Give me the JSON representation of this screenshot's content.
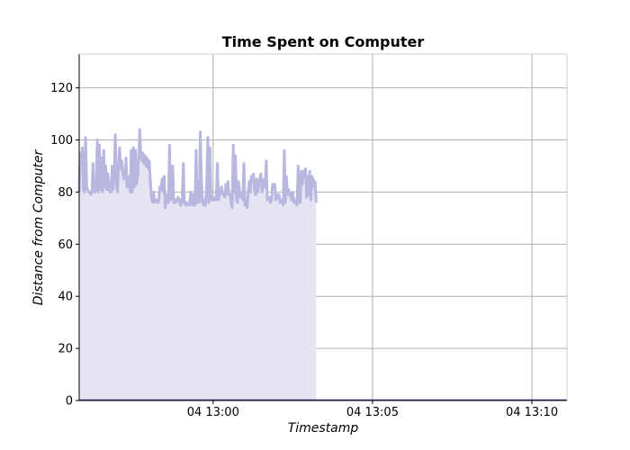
{
  "chart_data": {
    "type": "area",
    "title": "Time Spent on Computer",
    "xlabel": "Timestamp",
    "ylabel": "Distance from Computer",
    "ylim": [
      0,
      133
    ],
    "xlim": [
      "04 12:55:48",
      "04 13:11:06"
    ],
    "yticks": [
      0,
      20,
      40,
      60,
      80,
      100,
      120
    ],
    "xticks": [
      {
        "t": "04 13:00:00",
        "label": "04 13:00"
      },
      {
        "t": "04 13:05:00",
        "label": "04 13:05"
      },
      {
        "t": "04 13:10:00",
        "label": "04 13:10"
      }
    ],
    "grid": true,
    "colors": {
      "fill": "#e6e4f3",
      "line": "#b7b7df",
      "grid": "#b0b0b0",
      "baseline": "#3b3b9a"
    },
    "series": [
      {
        "values": [
          [
            "04 12:55:48",
            80
          ],
          [
            "04 12:55:50",
            95
          ],
          [
            "04 12:55:52",
            91
          ],
          [
            "04 12:55:54",
            97
          ],
          [
            "04 12:55:56",
            81
          ],
          [
            "04 12:55:58",
            80
          ],
          [
            "04 12:56:00",
            101
          ],
          [
            "04 12:56:02",
            82
          ],
          [
            "04 12:56:04",
            81
          ],
          [
            "04 12:56:06",
            80
          ],
          [
            "04 12:56:08",
            80
          ],
          [
            "04 12:56:10",
            79
          ],
          [
            "04 12:56:12",
            80
          ],
          [
            "04 12:56:14",
            91
          ],
          [
            "04 12:56:16",
            80
          ],
          [
            "04 12:56:18",
            80
          ],
          [
            "04 12:56:20",
            81
          ],
          [
            "04 12:56:22",
            100
          ],
          [
            "04 12:56:24",
            80
          ],
          [
            "04 12:56:26",
            98
          ],
          [
            "04 12:56:28",
            81
          ],
          [
            "04 12:56:30",
            93
          ],
          [
            "04 12:56:32",
            80
          ],
          [
            "04 12:56:34",
            96
          ],
          [
            "04 12:56:36",
            82
          ],
          [
            "04 12:56:38",
            90
          ],
          [
            "04 12:56:40",
            81
          ],
          [
            "04 12:56:42",
            87
          ],
          [
            "04 12:56:44",
            82
          ],
          [
            "04 12:56:46",
            80
          ],
          [
            "04 12:56:48",
            80
          ],
          [
            "04 12:56:50",
            90
          ],
          [
            "04 12:56:52",
            81
          ],
          [
            "04 12:56:54",
            88
          ],
          [
            "04 12:56:56",
            102
          ],
          [
            "04 12:56:58",
            84
          ],
          [
            "04 12:57:00",
            80
          ],
          [
            "04 12:57:02",
            90
          ],
          [
            "04 12:57:04",
            97
          ],
          [
            "04 12:57:06",
            89
          ],
          [
            "04 12:57:08",
            92
          ],
          [
            "04 12:57:10",
            88
          ],
          [
            "04 12:57:12",
            85
          ],
          [
            "04 12:57:14",
            85
          ],
          [
            "04 12:57:16",
            93
          ],
          [
            "04 12:57:18",
            82
          ],
          [
            "04 12:57:20",
            82
          ],
          [
            "04 12:57:22",
            86
          ],
          [
            "04 12:57:24",
            80
          ],
          [
            "04 12:57:26",
            96
          ],
          [
            "04 12:57:28",
            80
          ],
          [
            "04 12:57:30",
            97
          ],
          [
            "04 12:57:32",
            82
          ],
          [
            "04 12:57:34",
            96
          ],
          [
            "04 12:57:36",
            83
          ],
          [
            "04 12:57:38",
            86
          ],
          [
            "04 12:57:40",
            93
          ],
          [
            "04 12:57:42",
            104
          ],
          [
            "04 12:57:44",
            94
          ],
          [
            "04 12:57:46",
            92
          ],
          [
            "04 12:57:48",
            95
          ],
          [
            "04 12:57:50",
            91
          ],
          [
            "04 12:57:52",
            94
          ],
          [
            "04 12:57:54",
            90
          ],
          [
            "04 12:57:56",
            93
          ],
          [
            "04 12:57:58",
            89
          ],
          [
            "04 12:58:00",
            92
          ],
          [
            "04 12:58:02",
            84
          ],
          [
            "04 12:58:04",
            78
          ],
          [
            "04 12:58:06",
            76
          ],
          [
            "04 12:58:08",
            80
          ],
          [
            "04 12:58:10",
            76
          ],
          [
            "04 12:58:12",
            77
          ],
          [
            "04 12:58:14",
            77
          ],
          [
            "04 12:58:16",
            76
          ],
          [
            "04 12:58:18",
            77
          ],
          [
            "04 12:58:20",
            82
          ],
          [
            "04 12:58:22",
            81
          ],
          [
            "04 12:58:24",
            85
          ],
          [
            "04 12:58:26",
            80
          ],
          [
            "04 12:58:28",
            86
          ],
          [
            "04 12:58:30",
            74
          ],
          [
            "04 12:58:32",
            78
          ],
          [
            "04 12:58:34",
            79
          ],
          [
            "04 12:58:36",
            76
          ],
          [
            "04 12:58:38",
            98
          ],
          [
            "04 12:58:40",
            77
          ],
          [
            "04 12:58:42",
            79
          ],
          [
            "04 12:58:44",
            90
          ],
          [
            "04 12:58:46",
            76
          ],
          [
            "04 12:58:48",
            77
          ],
          [
            "04 12:58:50",
            76
          ],
          [
            "04 12:58:52",
            77
          ],
          [
            "04 12:58:54",
            78
          ],
          [
            "04 12:58:56",
            77
          ],
          [
            "04 12:58:58",
            75
          ],
          [
            "04 12:59:00",
            75
          ],
          [
            "04 12:59:02",
            78
          ],
          [
            "04 12:59:04",
            91
          ],
          [
            "04 12:59:06",
            76
          ],
          [
            "04 12:59:08",
            75
          ],
          [
            "04 12:59:10",
            76
          ],
          [
            "04 12:59:12",
            75
          ],
          [
            "04 12:59:14",
            75
          ],
          [
            "04 12:59:16",
            76
          ],
          [
            "04 12:59:18",
            80
          ],
          [
            "04 12:59:20",
            75
          ],
          [
            "04 12:59:22",
            79
          ],
          [
            "04 12:59:24",
            75
          ],
          [
            "04 12:59:26",
            75
          ],
          [
            "04 12:59:28",
            96
          ],
          [
            "04 12:59:30",
            76
          ],
          [
            "04 12:59:32",
            83
          ],
          [
            "04 12:59:34",
            76
          ],
          [
            "04 12:59:36",
            103
          ],
          [
            "04 12:59:38",
            84
          ],
          [
            "04 12:59:40",
            76
          ],
          [
            "04 12:59:42",
            75
          ],
          [
            "04 12:59:44",
            77
          ],
          [
            "04 12:59:46",
            75
          ],
          [
            "04 12:59:48",
            83
          ],
          [
            "04 12:59:50",
            101
          ],
          [
            "04 12:59:52",
            76
          ],
          [
            "04 12:59:54",
            97
          ],
          [
            "04 12:59:56",
            79
          ],
          [
            "04 12:59:58",
            77
          ],
          [
            "04 13:00:00",
            77
          ],
          [
            "04 13:00:02",
            77
          ],
          [
            "04 13:00:04",
            78
          ],
          [
            "04 13:00:06",
            77
          ],
          [
            "04 13:00:08",
            91
          ],
          [
            "04 13:00:10",
            77
          ],
          [
            "04 13:00:12",
            79
          ],
          [
            "04 13:00:14",
            81
          ],
          [
            "04 13:00:16",
            82
          ],
          [
            "04 13:00:18",
            79
          ],
          [
            "04 13:00:20",
            79
          ],
          [
            "04 13:00:22",
            78
          ],
          [
            "04 13:00:24",
            83
          ],
          [
            "04 13:00:26",
            79
          ],
          [
            "04 13:00:28",
            84
          ],
          [
            "04 13:00:30",
            79
          ],
          [
            "04 13:00:32",
            79
          ],
          [
            "04 13:00:34",
            76
          ],
          [
            "04 13:00:36",
            74
          ],
          [
            "04 13:00:38",
            98
          ],
          [
            "04 13:00:40",
            80
          ],
          [
            "04 13:00:42",
            94
          ],
          [
            "04 13:00:44",
            77
          ],
          [
            "04 13:00:46",
            76
          ],
          [
            "04 13:00:48",
            84
          ],
          [
            "04 13:00:50",
            80
          ],
          [
            "04 13:00:52",
            78
          ],
          [
            "04 13:00:54",
            80
          ],
          [
            "04 13:00:56",
            77
          ],
          [
            "04 13:00:58",
            91
          ],
          [
            "04 13:01:00",
            75
          ],
          [
            "04 13:01:02",
            75
          ],
          [
            "04 13:01:04",
            74
          ],
          [
            "04 13:01:06",
            80
          ],
          [
            "04 13:01:08",
            84
          ],
          [
            "04 13:01:10",
            80
          ],
          [
            "04 13:01:12",
            86
          ],
          [
            "04 13:01:14",
            85
          ],
          [
            "04 13:01:16",
            87
          ],
          [
            "04 13:01:18",
            81
          ],
          [
            "04 13:01:20",
            79
          ],
          [
            "04 13:01:22",
            85
          ],
          [
            "04 13:01:24",
            80
          ],
          [
            "04 13:01:26",
            83
          ],
          [
            "04 13:01:28",
            85
          ],
          [
            "04 13:01:30",
            87
          ],
          [
            "04 13:01:32",
            80
          ],
          [
            "04 13:01:34",
            82
          ],
          [
            "04 13:01:36",
            85
          ],
          [
            "04 13:01:38",
            82
          ],
          [
            "04 13:01:40",
            92
          ],
          [
            "04 13:01:42",
            77
          ],
          [
            "04 13:01:44",
            78
          ],
          [
            "04 13:01:46",
            78
          ],
          [
            "04 13:01:48",
            76
          ],
          [
            "04 13:01:50",
            77
          ],
          [
            "04 13:01:52",
            83
          ],
          [
            "04 13:01:54",
            82
          ],
          [
            "04 13:01:56",
            83
          ],
          [
            "04 13:01:58",
            77
          ],
          [
            "04 13:02:00",
            78
          ],
          [
            "04 13:02:02",
            79
          ],
          [
            "04 13:02:04",
            79
          ],
          [
            "04 13:02:06",
            76
          ],
          [
            "04 13:02:08",
            76
          ],
          [
            "04 13:02:10",
            77
          ],
          [
            "04 13:02:12",
            75
          ],
          [
            "04 13:02:14",
            96
          ],
          [
            "04 13:02:16",
            76
          ],
          [
            "04 13:02:18",
            86
          ],
          [
            "04 13:02:20",
            79
          ],
          [
            "04 13:02:22",
            81
          ],
          [
            "04 13:02:24",
            80
          ],
          [
            "04 13:02:26",
            78
          ],
          [
            "04 13:02:28",
            77
          ],
          [
            "04 13:02:30",
            80
          ],
          [
            "04 13:02:32",
            76
          ],
          [
            "04 13:02:34",
            77
          ],
          [
            "04 13:02:36",
            76
          ],
          [
            "04 13:02:38",
            75
          ],
          [
            "04 13:02:40",
            90
          ],
          [
            "04 13:02:42",
            77
          ],
          [
            "04 13:02:44",
            76
          ],
          [
            "04 13:02:46",
            88
          ],
          [
            "04 13:02:48",
            83
          ],
          [
            "04 13:02:50",
            88
          ],
          [
            "04 13:02:52",
            86
          ],
          [
            "04 13:02:54",
            89
          ],
          [
            "04 13:02:56",
            78
          ],
          [
            "04 13:02:58",
            86
          ],
          [
            "04 13:03:00",
            79
          ],
          [
            "04 13:03:02",
            88
          ],
          [
            "04 13:03:04",
            77
          ],
          [
            "04 13:03:06",
            86
          ],
          [
            "04 13:03:08",
            85
          ],
          [
            "04 13:03:10",
            82
          ],
          [
            "04 13:03:12",
            84
          ],
          [
            "04 13:03:14",
            76
          ]
        ]
      }
    ]
  }
}
